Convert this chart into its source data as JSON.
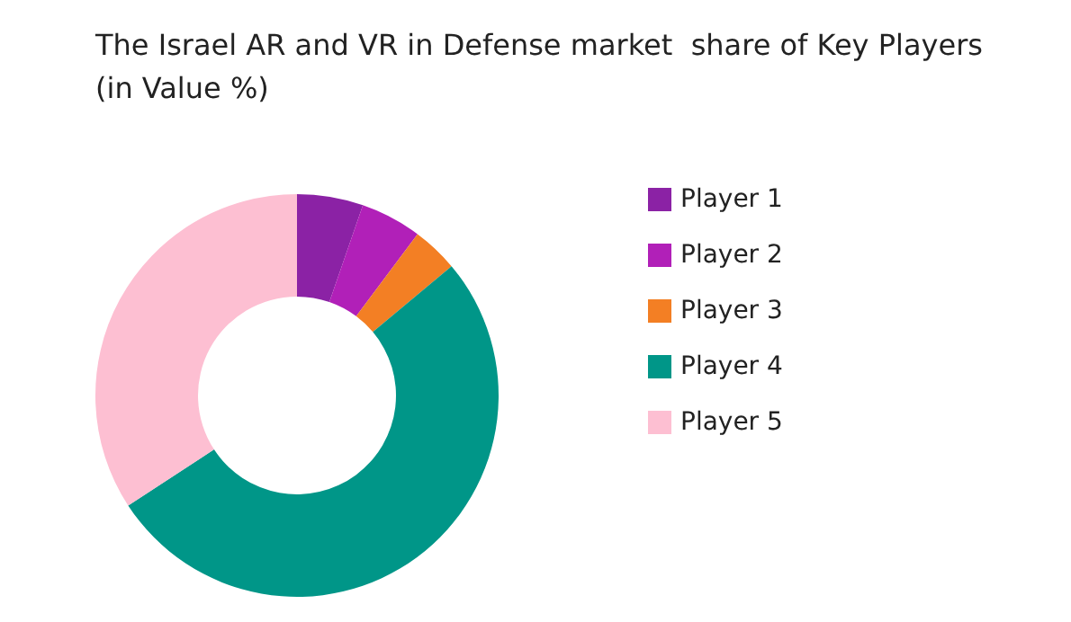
{
  "chart_data": {
    "type": "donut",
    "title": "The Israel AR and VR in Defense market  share of Key Players\n(in Value %)",
    "categories": [
      "Player 1",
      "Player 2",
      "Player 3",
      "Player 4",
      "Player 5"
    ],
    "values": [
      5.3,
      4.9,
      3.7,
      51.9,
      34.2
    ],
    "colors": [
      "#8b22a5",
      "#b120b8",
      "#f37f24",
      "#009688",
      "#fdbfd2"
    ],
    "legend": "right"
  }
}
